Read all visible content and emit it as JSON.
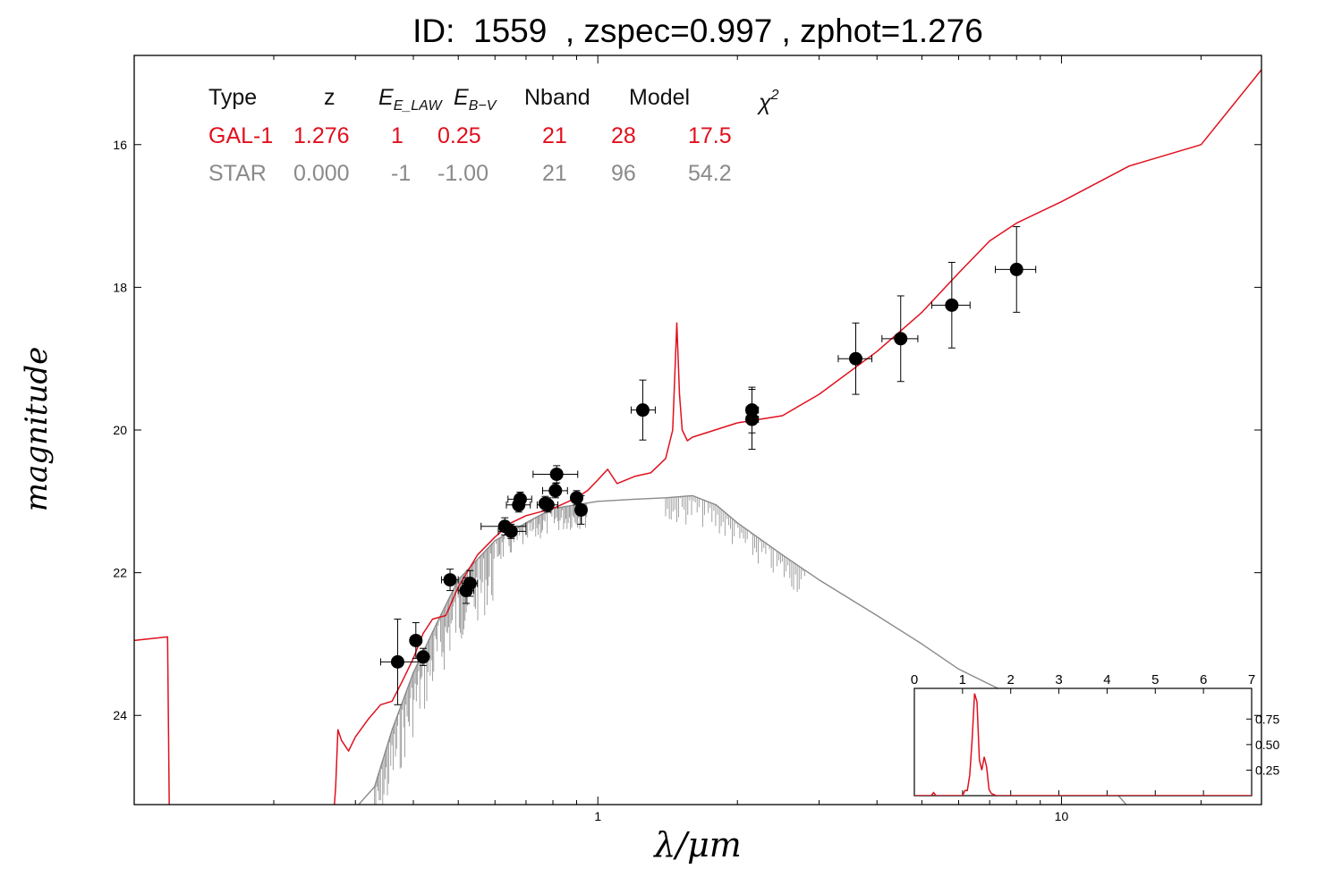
{
  "title": "ID:  1559  , zspec=0.997 , zphot=1.276",
  "colors": {
    "model_gal": "#e0101e",
    "model_star": "#8a8a8a",
    "points": "#000000"
  },
  "chart_data": [
    {
      "type": "scatter",
      "title": "ID:  1559  , zspec=0.997 , zphot=1.276",
      "xlabel": "λ/μm",
      "ylabel": "magnitude",
      "xscale": "log",
      "xlim": [
        0.1,
        27
      ],
      "ylim": [
        25.25,
        14.75
      ],
      "y_inverted": true,
      "xtick_labels": [
        "1",
        "10"
      ],
      "ytick_labels": [
        "16",
        "18",
        "20",
        "22",
        "24"
      ],
      "fit_table": {
        "headers": [
          "Type",
          "z",
          "E_LAW",
          "E_B−V",
          "Nband",
          "Model",
          "χ²"
        ],
        "rows": [
          {
            "name": "GAL-1",
            "color": "#e0101e",
            "values": [
              "GAL-1",
              "1.276",
              "1",
              "0.25",
              "21",
              "28",
              "17.5"
            ]
          },
          {
            "name": "STAR",
            "color": "#8a8a8a",
            "values": [
              "STAR",
              "0.000",
              "-1",
              "-1.00",
              "21",
              "96",
              "54.2"
            ]
          }
        ]
      },
      "photometry": [
        {
          "x": 0.37,
          "y": 23.25,
          "xerr": [
            0.03,
            0.05
          ],
          "yerr": 0.6
        },
        {
          "x": 0.405,
          "y": 22.95,
          "yerr": 0.25
        },
        {
          "x": 0.42,
          "y": 23.18,
          "yerr": 0.12
        },
        {
          "x": 0.48,
          "y": 22.1,
          "xerr": [
            0.02,
            0.02
          ],
          "yerr": 0.15
        },
        {
          "x": 0.52,
          "y": 22.25,
          "xerr": [
            0.02,
            0.02
          ],
          "yerr": 0.18
        },
        {
          "x": 0.53,
          "y": 22.15,
          "xerr": [
            0.02,
            0.02
          ],
          "yerr": 0.18
        },
        {
          "x": 0.63,
          "y": 21.35,
          "xerr": [
            0.07,
            0.07
          ],
          "yerr": 0.12
        },
        {
          "x": 0.65,
          "y": 21.42,
          "xerr": [
            0.04,
            0.05
          ],
          "yerr": 0.1
        },
        {
          "x": 0.675,
          "y": 21.05,
          "xerr": [
            0.04,
            0.04
          ],
          "yerr": 0.1
        },
        {
          "x": 0.68,
          "y": 20.97,
          "xerr": [
            0.04,
            0.04
          ],
          "yerr": 0.1
        },
        {
          "x": 0.77,
          "y": 21.03,
          "yerr": 0.1
        },
        {
          "x": 0.78,
          "y": 21.05,
          "xerr": [
            0.04,
            0.04
          ],
          "yerr": 0.1
        },
        {
          "x": 0.81,
          "y": 20.85,
          "xerr": [
            0.05,
            0.05
          ],
          "yerr": 0.1
        },
        {
          "x": 0.815,
          "y": 20.62,
          "xerr": [
            0.09,
            0.09
          ],
          "yerr": 0.12
        },
        {
          "x": 0.9,
          "y": 20.95,
          "yerr": 0.1
        },
        {
          "x": 0.92,
          "y": 21.12,
          "yerr": 0.2
        },
        {
          "x": 1.25,
          "y": 19.72,
          "xerr": [
            0.07,
            0.08
          ],
          "yerr": 0.42
        },
        {
          "x": 2.15,
          "y": 19.72,
          "xerr": [
            0.06,
            0.07
          ],
          "yerr": 0.32
        },
        {
          "x": 2.15,
          "y": 19.85,
          "xerr": [
            0.06,
            0.07
          ],
          "yerr": 0.42
        },
        {
          "x": 3.6,
          "y": 19.0,
          "xerr": [
            0.3,
            0.3
          ],
          "yerr": 0.5
        },
        {
          "x": 4.5,
          "y": 18.72,
          "xerr": [
            0.4,
            0.4
          ],
          "yerr": 0.6
        },
        {
          "x": 5.8,
          "y": 18.25,
          "xerr": [
            0.55,
            0.55
          ],
          "yerr": 0.6
        },
        {
          "x": 8.0,
          "y": 17.75,
          "xerr": [
            0.8,
            0.8
          ],
          "yerr": 0.6
        }
      ],
      "model_gal": {
        "name": "GAL-1",
        "x": [
          0.1,
          0.118,
          0.119,
          0.27,
          0.272,
          0.275,
          0.28,
          0.29,
          0.3,
          0.32,
          0.34,
          0.36,
          0.38,
          0.4,
          0.42,
          0.44,
          0.47,
          0.5,
          0.55,
          0.6,
          0.65,
          0.7,
          0.8,
          0.9,
          0.95,
          1.0,
          1.05,
          1.1,
          1.2,
          1.3,
          1.4,
          1.45,
          1.48,
          1.5,
          1.52,
          1.56,
          1.6,
          2.0,
          2.5,
          3.0,
          4.0,
          5.0,
          6.0,
          7.0,
          8.0,
          10.0,
          14.0,
          20.0,
          27.0
        ],
        "y": [
          22.95,
          22.9,
          25.3,
          25.3,
          25.0,
          24.2,
          24.35,
          24.5,
          24.3,
          24.05,
          23.85,
          23.8,
          23.5,
          23.2,
          22.85,
          22.65,
          22.6,
          22.2,
          21.75,
          21.5,
          21.3,
          21.2,
          21.1,
          20.95,
          20.85,
          20.7,
          20.55,
          20.75,
          20.65,
          20.6,
          20.4,
          20.0,
          18.5,
          19.5,
          20.0,
          20.15,
          20.1,
          19.9,
          19.8,
          19.5,
          18.9,
          18.35,
          17.8,
          17.35,
          17.1,
          16.8,
          16.3,
          16.0,
          14.95
        ]
      },
      "model_star": {
        "name": "STAR",
        "x": [
          0.3,
          0.33,
          0.36,
          0.4,
          0.45,
          0.5,
          0.6,
          0.7,
          0.8,
          1.0,
          1.2,
          1.4,
          1.6,
          1.8,
          2.0,
          2.5,
          3.0,
          4.0,
          5.0,
          6.0,
          8.0,
          10.0,
          14.0
        ],
        "y": [
          25.3,
          25.0,
          24.2,
          23.4,
          22.7,
          22.1,
          21.55,
          21.3,
          21.1,
          21.0,
          20.97,
          20.95,
          20.92,
          21.05,
          21.3,
          21.75,
          22.1,
          22.6,
          23.0,
          23.35,
          23.75,
          24.2,
          25.3
        ]
      }
    },
    {
      "type": "line",
      "xlim": [
        0,
        7
      ],
      "ylim": [
        0,
        1.05
      ],
      "xtick_labels": [
        "0",
        "1",
        "2",
        "3",
        "4",
        "5",
        "6",
        "7"
      ],
      "ytick_labels": [
        "0.25",
        "0.50",
        "0.75"
      ],
      "series": [
        {
          "x": [
            0,
            0.35,
            0.4,
            0.45,
            0.5,
            1.0,
            1.05,
            1.1,
            1.15,
            1.2,
            1.25,
            1.3,
            1.35,
            1.4,
            1.45,
            1.5,
            1.55,
            1.6,
            1.7,
            2.0,
            7.0
          ],
          "y": [
            0.0,
            0.0,
            0.03,
            0.0,
            0.0,
            0.0,
            0.05,
            0.05,
            0.2,
            0.55,
            1.0,
            0.92,
            0.35,
            0.25,
            0.38,
            0.28,
            0.06,
            0.02,
            0.0,
            0.0,
            0.0
          ]
        }
      ]
    }
  ]
}
